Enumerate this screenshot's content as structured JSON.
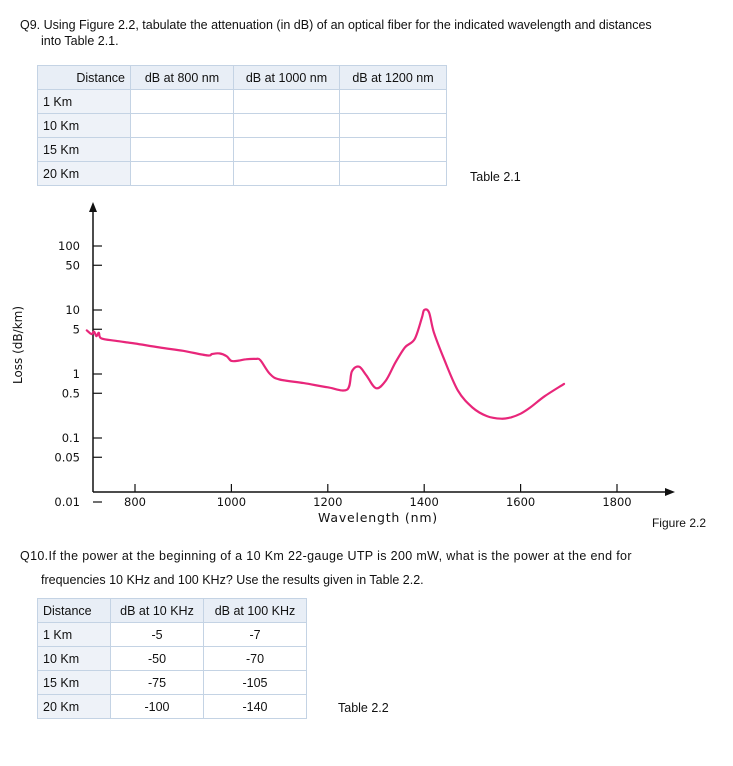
{
  "q9": {
    "text_line1": "Q9. Using Figure 2.2, tabulate the attenuation (in dB) of an optical fiber for the indicated wavelength and distances",
    "text_line2": "into Table 2.1."
  },
  "table21": {
    "headers": [
      "Distance",
      "dB at 800 nm",
      "dB at 1000 nm",
      "dB at 1200 nm"
    ],
    "rows": [
      "1 Km",
      "10 Km",
      "15 Km",
      "20 Km"
    ],
    "caption": "Table 2.1"
  },
  "figure": {
    "caption": "Figure 2.2",
    "line_color": "#e8267a"
  },
  "chart_data": {
    "type": "line",
    "xlabel": "Wavelength (nm)",
    "ylabel": "Loss (dB/km)",
    "x_ticks": [
      "800",
      "1000",
      "1200",
      "1400",
      "1600",
      "1800"
    ],
    "y_ticks": [
      "100",
      "50",
      "10",
      "5",
      "1",
      "0.5",
      "0.1",
      "0.05",
      "0.01"
    ],
    "xlim": [
      700,
      1800
    ],
    "ylim": [
      0.01,
      100
    ],
    "y_scale": "log",
    "series": [
      {
        "x": [
          700,
          710,
          715,
          720,
          725,
          730,
          760,
          800,
          850,
          900,
          950,
          960,
          975,
          990,
          1000,
          1015,
          1030,
          1050,
          1060,
          1080,
          1100,
          1150,
          1200,
          1240,
          1250,
          1265,
          1280,
          1300,
          1320,
          1340,
          1360,
          1380,
          1395,
          1400,
          1410,
          1420,
          1440,
          1470,
          1500,
          1530,
          1560,
          1580,
          1600,
          1620,
          1650,
          1690
        ],
        "y": [
          4.8,
          4.2,
          4.6,
          3.9,
          4.4,
          3.6,
          3.3,
          3.0,
          2.6,
          2.3,
          1.95,
          2.05,
          2.1,
          1.9,
          1.6,
          1.62,
          1.7,
          1.72,
          1.65,
          1.0,
          0.82,
          0.72,
          0.62,
          0.57,
          1.1,
          1.3,
          0.95,
          0.6,
          0.78,
          1.5,
          2.6,
          3.5,
          7.5,
          10.0,
          9.2,
          4.5,
          1.8,
          0.55,
          0.3,
          0.22,
          0.2,
          0.21,
          0.24,
          0.3,
          0.45,
          0.7
        ]
      }
    ]
  },
  "q10": {
    "text_line1": "Q10.If the power at the beginning of a 10 Km 22-gauge UTP is 200 mW, what is the power at the end for",
    "text_line2": "frequencies 10 KHz and 100 KHz? Use the results given in Table 2.2."
  },
  "table22": {
    "headers": [
      "Distance",
      "dB at 10 KHz",
      "dB at 100 KHz"
    ],
    "rows": [
      [
        "1 Km",
        "-5",
        "-7"
      ],
      [
        "10 Km",
        "-50",
        "-70"
      ],
      [
        "15 Km",
        "-75",
        "-105"
      ],
      [
        "20 Km",
        "-100",
        "-140"
      ]
    ],
    "caption": "Table 2.2"
  }
}
